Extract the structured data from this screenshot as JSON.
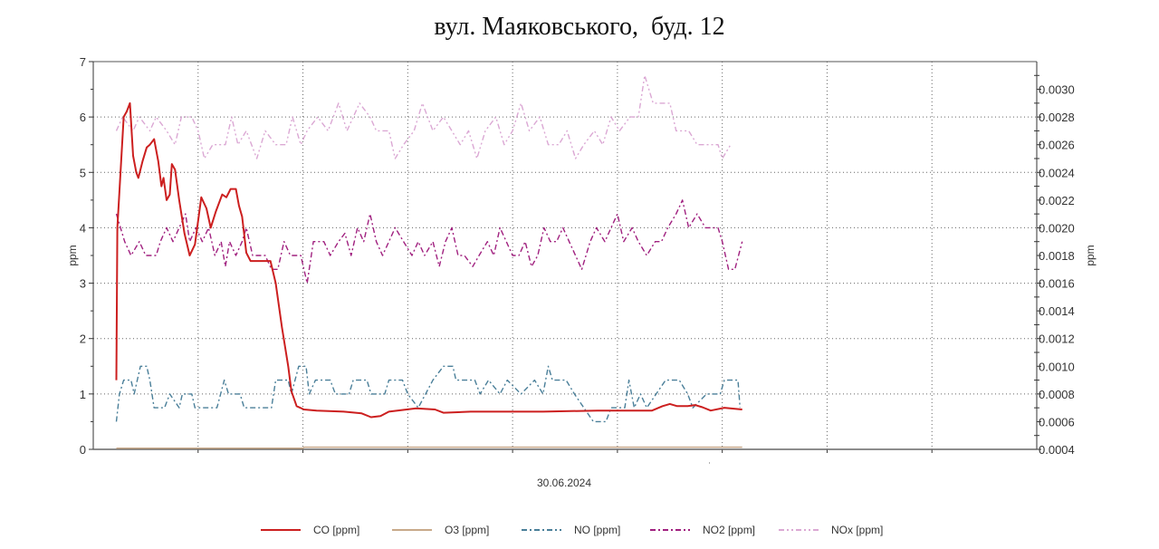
{
  "chart_data": {
    "type": "line",
    "title": "вул. Маяковського,  буд. 12",
    "xlabel": "30.06.2024",
    "ylabel": "ppm",
    "ylabel_right": "ppm",
    "xlim": [
      0,
      90
    ],
    "x_grid_step": 10,
    "ylim": [
      0,
      7
    ],
    "yticks": [
      "0",
      "1",
      "2",
      "3",
      "4",
      "5",
      "6",
      "7"
    ],
    "ylim_right": [
      0.0004,
      0.0032
    ],
    "yticks_right": [
      "0.0004",
      "0.0006",
      "0.0008",
      "0.0010",
      "0.0012",
      "0.0014",
      "0.0016",
      "0.0018",
      "0.0020",
      "0.0022",
      "0.0024",
      "0.0026",
      "0.0028",
      "0.0030"
    ],
    "grid": true,
    "legend_position": "bottom",
    "series": [
      {
        "name": "CO [ppm]",
        "color": "#cc1f1f",
        "style": "solid",
        "points": [
          [
            2.2,
            1.25
          ],
          [
            2.3,
            4.0
          ],
          [
            2.6,
            5.0
          ],
          [
            2.9,
            6.0
          ],
          [
            3.2,
            6.1
          ],
          [
            3.5,
            6.25
          ],
          [
            3.8,
            5.3
          ],
          [
            4.1,
            5.0
          ],
          [
            4.3,
            4.9
          ],
          [
            4.7,
            5.2
          ],
          [
            5.1,
            5.45
          ],
          [
            5.4,
            5.5
          ],
          [
            5.8,
            5.6
          ],
          [
            6.2,
            5.2
          ],
          [
            6.5,
            4.75
          ],
          [
            6.7,
            4.9
          ],
          [
            7.0,
            4.5
          ],
          [
            7.3,
            4.6
          ],
          [
            7.5,
            5.15
          ],
          [
            7.8,
            5.05
          ],
          [
            8.2,
            4.5
          ],
          [
            8.7,
            3.9
          ],
          [
            9.2,
            3.5
          ],
          [
            9.7,
            3.7
          ],
          [
            10.3,
            4.55
          ],
          [
            10.8,
            4.35
          ],
          [
            11.2,
            4.0
          ],
          [
            11.7,
            4.3
          ],
          [
            12.3,
            4.6
          ],
          [
            12.7,
            4.55
          ],
          [
            13.1,
            4.7
          ],
          [
            13.6,
            4.7
          ],
          [
            13.9,
            4.4
          ],
          [
            14.2,
            4.2
          ],
          [
            14.6,
            3.55
          ],
          [
            15.0,
            3.4
          ],
          [
            16.9,
            3.4
          ],
          [
            17.4,
            3.0
          ],
          [
            18.0,
            2.2
          ],
          [
            18.6,
            1.5
          ],
          [
            18.9,
            1.05
          ],
          [
            19.4,
            0.78
          ],
          [
            20.1,
            0.72
          ],
          [
            21.3,
            0.7
          ],
          [
            23.9,
            0.68
          ],
          [
            25.6,
            0.65
          ],
          [
            26.5,
            0.58
          ],
          [
            27.4,
            0.6
          ],
          [
            28.2,
            0.68
          ],
          [
            30.8,
            0.74
          ],
          [
            32.6,
            0.72
          ],
          [
            33.4,
            0.66
          ],
          [
            36.0,
            0.68
          ],
          [
            39.5,
            0.68
          ],
          [
            42.9,
            0.68
          ],
          [
            48.1,
            0.7
          ],
          [
            53.3,
            0.7
          ],
          [
            54.3,
            0.78
          ],
          [
            55.0,
            0.82
          ],
          [
            55.7,
            0.78
          ],
          [
            56.7,
            0.78
          ],
          [
            57.4,
            0.8
          ],
          [
            58.1,
            0.76
          ],
          [
            58.9,
            0.7
          ],
          [
            60.2,
            0.75
          ],
          [
            61.9,
            0.72
          ]
        ]
      },
      {
        "name": "O3 [ppm]",
        "color": "#c8a98a",
        "style": "solid",
        "points": [
          [
            2.2,
            0.02
          ],
          [
            20.0,
            0.02
          ],
          [
            20.1,
            0.04
          ],
          [
            61.9,
            0.04
          ]
        ]
      },
      {
        "name": "NO [ppm]",
        "color": "#4a7f99",
        "style": "dashdot",
        "points": [
          [
            2.2,
            0.5
          ],
          [
            2.5,
            1.0
          ],
          [
            2.9,
            1.25
          ],
          [
            3.6,
            1.25
          ],
          [
            3.9,
            1.0
          ],
          [
            4.2,
            1.25
          ],
          [
            4.5,
            1.5
          ],
          [
            5.1,
            1.5
          ],
          [
            5.4,
            1.25
          ],
          [
            5.8,
            0.75
          ],
          [
            6.8,
            0.75
          ],
          [
            7.3,
            1.0
          ],
          [
            8.2,
            0.75
          ],
          [
            8.5,
            1.0
          ],
          [
            9.4,
            1.0
          ],
          [
            9.7,
            0.75
          ],
          [
            11.8,
            0.75
          ],
          [
            12.5,
            1.25
          ],
          [
            12.9,
            1.0
          ],
          [
            14.0,
            1.0
          ],
          [
            14.4,
            0.75
          ],
          [
            17.0,
            0.75
          ],
          [
            17.4,
            1.25
          ],
          [
            18.6,
            1.25
          ],
          [
            18.9,
            1.0
          ],
          [
            19.6,
            1.5
          ],
          [
            20.3,
            1.5
          ],
          [
            20.6,
            1.0
          ],
          [
            21.2,
            1.25
          ],
          [
            22.6,
            1.25
          ],
          [
            23.1,
            1.0
          ],
          [
            24.4,
            1.0
          ],
          [
            24.8,
            1.25
          ],
          [
            26.1,
            1.25
          ],
          [
            26.5,
            1.0
          ],
          [
            27.8,
            1.0
          ],
          [
            28.2,
            1.25
          ],
          [
            29.5,
            1.25
          ],
          [
            30.0,
            1.0
          ],
          [
            31.0,
            0.75
          ],
          [
            31.7,
            1.0
          ],
          [
            32.4,
            1.25
          ],
          [
            33.4,
            1.5
          ],
          [
            34.3,
            1.5
          ],
          [
            34.6,
            1.25
          ],
          [
            36.4,
            1.25
          ],
          [
            36.9,
            1.0
          ],
          [
            37.7,
            1.25
          ],
          [
            38.8,
            1.0
          ],
          [
            39.5,
            1.25
          ],
          [
            40.8,
            1.0
          ],
          [
            42.1,
            1.25
          ],
          [
            42.9,
            1.0
          ],
          [
            43.4,
            1.5
          ],
          [
            43.8,
            1.25
          ],
          [
            45.1,
            1.25
          ],
          [
            45.9,
            1.0
          ],
          [
            46.8,
            0.75
          ],
          [
            47.7,
            0.5
          ],
          [
            48.9,
            0.5
          ],
          [
            49.4,
            0.75
          ],
          [
            50.7,
            0.75
          ],
          [
            51.1,
            1.25
          ],
          [
            51.6,
            0.75
          ],
          [
            52.2,
            1.0
          ],
          [
            52.8,
            0.75
          ],
          [
            54.6,
            1.25
          ],
          [
            55.9,
            1.25
          ],
          [
            56.7,
            1.0
          ],
          [
            57.2,
            0.75
          ],
          [
            58.5,
            1.0
          ],
          [
            59.8,
            1.0
          ],
          [
            60.2,
            1.25
          ],
          [
            61.5,
            1.25
          ],
          [
            61.7,
            0.75
          ]
        ]
      },
      {
        "name": "NO2 [ppm]",
        "color": "#a0207f",
        "style": "dashdot",
        "points": [
          [
            2.2,
            4.25
          ],
          [
            2.6,
            4.0
          ],
          [
            3.0,
            3.75
          ],
          [
            3.6,
            3.5
          ],
          [
            4.4,
            3.75
          ],
          [
            5.0,
            3.5
          ],
          [
            6.0,
            3.5
          ],
          [
            6.4,
            3.75
          ],
          [
            7.0,
            4.0
          ],
          [
            7.6,
            3.75
          ],
          [
            8.2,
            4.0
          ],
          [
            8.8,
            4.25
          ],
          [
            9.2,
            3.75
          ],
          [
            9.8,
            4.0
          ],
          [
            10.4,
            3.75
          ],
          [
            11.0,
            4.0
          ],
          [
            11.6,
            3.5
          ],
          [
            12.2,
            3.75
          ],
          [
            12.6,
            3.3
          ],
          [
            13.0,
            3.75
          ],
          [
            13.6,
            3.5
          ],
          [
            14.2,
            3.75
          ],
          [
            14.6,
            4.0
          ],
          [
            15.2,
            3.5
          ],
          [
            16.4,
            3.5
          ],
          [
            17.0,
            3.25
          ],
          [
            17.6,
            3.25
          ],
          [
            18.2,
            3.75
          ],
          [
            18.8,
            3.5
          ],
          [
            19.8,
            3.5
          ],
          [
            20.4,
            3.0
          ],
          [
            21.0,
            3.75
          ],
          [
            22.0,
            3.75
          ],
          [
            22.6,
            3.5
          ],
          [
            23.4,
            3.75
          ],
          [
            24.0,
            3.9
          ],
          [
            24.6,
            3.5
          ],
          [
            25.2,
            4.0
          ],
          [
            25.8,
            3.75
          ],
          [
            26.4,
            4.25
          ],
          [
            27.0,
            3.75
          ],
          [
            27.6,
            3.5
          ],
          [
            28.2,
            3.75
          ],
          [
            28.8,
            4.0
          ],
          [
            29.6,
            3.75
          ],
          [
            30.4,
            3.5
          ],
          [
            31.0,
            3.75
          ],
          [
            31.6,
            3.5
          ],
          [
            32.4,
            3.75
          ],
          [
            33.0,
            3.3
          ],
          [
            33.6,
            3.75
          ],
          [
            34.2,
            4.0
          ],
          [
            34.8,
            3.5
          ],
          [
            35.4,
            3.5
          ],
          [
            36.2,
            3.3
          ],
          [
            36.8,
            3.5
          ],
          [
            37.6,
            3.75
          ],
          [
            38.2,
            3.5
          ],
          [
            38.8,
            4.0
          ],
          [
            39.4,
            3.75
          ],
          [
            40.0,
            3.5
          ],
          [
            40.6,
            3.5
          ],
          [
            41.2,
            3.75
          ],
          [
            41.8,
            3.3
          ],
          [
            42.4,
            3.5
          ],
          [
            43.0,
            4.0
          ],
          [
            43.6,
            3.75
          ],
          [
            44.2,
            3.75
          ],
          [
            44.8,
            4.0
          ],
          [
            45.4,
            3.75
          ],
          [
            46.0,
            3.5
          ],
          [
            46.6,
            3.25
          ],
          [
            47.4,
            3.75
          ],
          [
            48.0,
            4.0
          ],
          [
            48.8,
            3.75
          ],
          [
            49.4,
            4.0
          ],
          [
            50.0,
            4.25
          ],
          [
            50.6,
            3.75
          ],
          [
            51.4,
            4.0
          ],
          [
            52.0,
            3.75
          ],
          [
            52.8,
            3.5
          ],
          [
            53.6,
            3.75
          ],
          [
            54.2,
            3.75
          ],
          [
            54.8,
            4.0
          ],
          [
            55.6,
            4.25
          ],
          [
            56.2,
            4.5
          ],
          [
            56.8,
            4.0
          ],
          [
            57.6,
            4.25
          ],
          [
            58.4,
            4.0
          ],
          [
            59.6,
            4.0
          ],
          [
            60.0,
            3.75
          ],
          [
            60.6,
            3.25
          ],
          [
            61.2,
            3.25
          ],
          [
            61.9,
            3.75
          ]
        ]
      },
      {
        "name": "NOx [ppm]",
        "color": "#dba8d4",
        "style": "dashdotdot",
        "points": [
          [
            2.2,
            5.75
          ],
          [
            2.8,
            6.0
          ],
          [
            3.8,
            5.75
          ],
          [
            4.4,
            6.0
          ],
          [
            5.4,
            5.75
          ],
          [
            6.0,
            6.0
          ],
          [
            7.0,
            5.75
          ],
          [
            7.8,
            5.5
          ],
          [
            8.4,
            6.0
          ],
          [
            9.4,
            6.0
          ],
          [
            10.0,
            5.75
          ],
          [
            10.6,
            5.25
          ],
          [
            11.4,
            5.5
          ],
          [
            12.6,
            5.5
          ],
          [
            13.2,
            6.0
          ],
          [
            13.8,
            5.5
          ],
          [
            14.6,
            5.75
          ],
          [
            15.6,
            5.25
          ],
          [
            16.4,
            5.75
          ],
          [
            17.4,
            5.5
          ],
          [
            18.4,
            5.5
          ],
          [
            19.0,
            6.0
          ],
          [
            19.8,
            5.5
          ],
          [
            20.4,
            5.75
          ],
          [
            21.4,
            6.0
          ],
          [
            22.4,
            5.75
          ],
          [
            23.4,
            6.25
          ],
          [
            24.2,
            5.75
          ],
          [
            25.4,
            6.25
          ],
          [
            26.4,
            6.0
          ],
          [
            27.0,
            5.75
          ],
          [
            28.2,
            5.75
          ],
          [
            28.8,
            5.25
          ],
          [
            29.6,
            5.5
          ],
          [
            30.6,
            5.75
          ],
          [
            31.4,
            6.25
          ],
          [
            32.4,
            5.75
          ],
          [
            33.4,
            6.0
          ],
          [
            34.2,
            5.75
          ],
          [
            35.0,
            5.5
          ],
          [
            35.8,
            5.75
          ],
          [
            36.6,
            5.25
          ],
          [
            37.4,
            5.75
          ],
          [
            38.4,
            6.0
          ],
          [
            39.2,
            5.5
          ],
          [
            40.0,
            5.75
          ],
          [
            40.8,
            6.25
          ],
          [
            41.6,
            5.75
          ],
          [
            42.6,
            6.0
          ],
          [
            43.4,
            5.5
          ],
          [
            44.4,
            5.5
          ],
          [
            45.2,
            5.75
          ],
          [
            46.0,
            5.25
          ],
          [
            46.8,
            5.5
          ],
          [
            47.8,
            5.75
          ],
          [
            48.6,
            5.5
          ],
          [
            49.4,
            6.0
          ],
          [
            50.2,
            5.75
          ],
          [
            51.2,
            6.0
          ],
          [
            52.0,
            6.0
          ],
          [
            52.6,
            6.75
          ],
          [
            53.4,
            6.25
          ],
          [
            55.0,
            6.25
          ],
          [
            55.6,
            5.75
          ],
          [
            56.8,
            5.75
          ],
          [
            57.6,
            5.5
          ],
          [
            59.6,
            5.5
          ],
          [
            60.0,
            5.25
          ],
          [
            60.8,
            5.5
          ]
        ]
      }
    ]
  }
}
